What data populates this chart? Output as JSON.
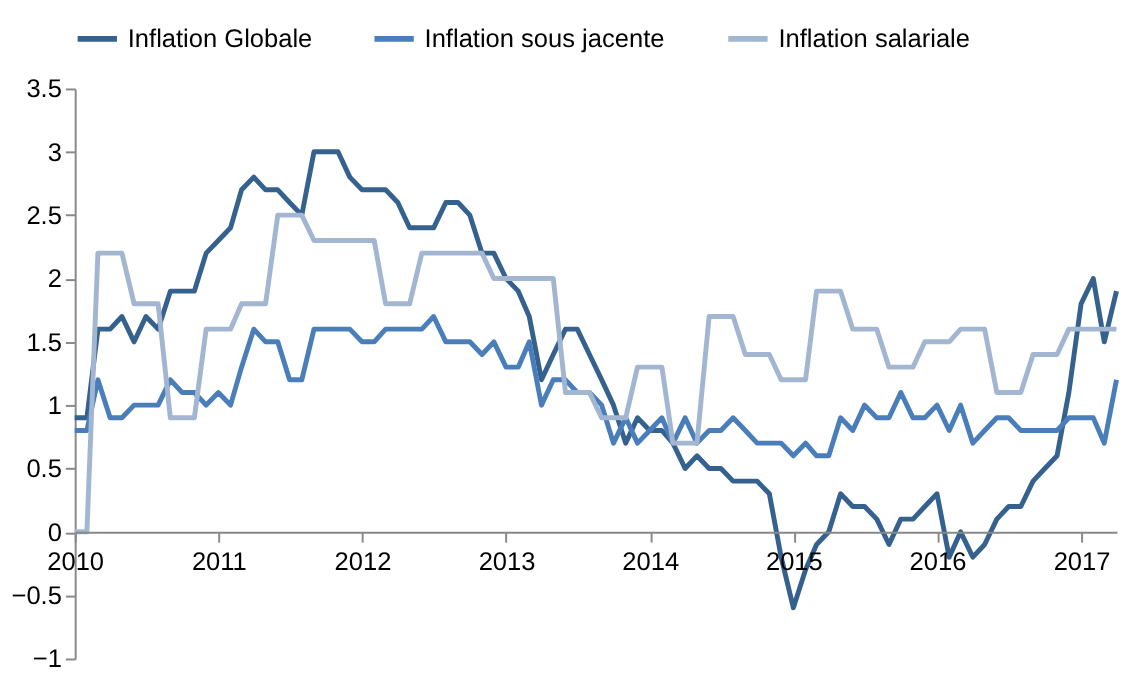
{
  "chart_data": {
    "type": "line",
    "legend": "top",
    "grid": false,
    "marker": "none",
    "line_style": "solid",
    "xlim": [
      "2010-01",
      "2017-04"
    ],
    "xticks": [
      "2010",
      "2011",
      "2012",
      "2013",
      "2014",
      "2015",
      "2016",
      "2017"
    ],
    "ylim": [
      -1,
      3.5
    ],
    "yticks": [
      -1,
      -0.5,
      0,
      0.5,
      1,
      1.5,
      2,
      2.5,
      3,
      3.5
    ],
    "x": [
      "2010-01",
      "2010-02",
      "2010-03",
      "2010-04",
      "2010-05",
      "2010-06",
      "2010-07",
      "2010-08",
      "2010-09",
      "2010-10",
      "2010-11",
      "2010-12",
      "2011-01",
      "2011-02",
      "2011-03",
      "2011-04",
      "2011-05",
      "2011-06",
      "2011-07",
      "2011-08",
      "2011-09",
      "2011-10",
      "2011-11",
      "2011-12",
      "2012-01",
      "2012-02",
      "2012-03",
      "2012-04",
      "2012-05",
      "2012-06",
      "2012-07",
      "2012-08",
      "2012-09",
      "2012-10",
      "2012-11",
      "2012-12",
      "2013-01",
      "2013-02",
      "2013-03",
      "2013-04",
      "2013-05",
      "2013-06",
      "2013-07",
      "2013-08",
      "2013-09",
      "2013-10",
      "2013-11",
      "2013-12",
      "2014-01",
      "2014-02",
      "2014-03",
      "2014-04",
      "2014-05",
      "2014-06",
      "2014-07",
      "2014-08",
      "2014-09",
      "2014-10",
      "2014-11",
      "2014-12",
      "2015-01",
      "2015-02",
      "2015-03",
      "2015-04",
      "2015-05",
      "2015-06",
      "2015-07",
      "2015-08",
      "2015-09",
      "2015-10",
      "2015-11",
      "2015-12",
      "2016-01",
      "2016-02",
      "2016-03",
      "2016-04",
      "2016-05",
      "2016-06",
      "2016-07",
      "2016-08",
      "2016-09",
      "2016-10",
      "2016-11",
      "2016-12",
      "2017-01",
      "2017-02",
      "2017-03",
      "2017-04"
    ],
    "series": [
      {
        "name": "Inflation Globale",
        "color": "#35618f",
        "values": [
          0.9,
          0.9,
          1.6,
          1.6,
          1.7,
          1.5,
          1.7,
          1.6,
          1.9,
          1.9,
          1.9,
          2.2,
          2.3,
          2.4,
          2.7,
          2.8,
          2.7,
          2.7,
          2.6,
          2.5,
          3.0,
          3.0,
          3.0,
          2.8,
          2.7,
          2.7,
          2.7,
          2.6,
          2.4,
          2.4,
          2.4,
          2.6,
          2.6,
          2.5,
          2.2,
          2.2,
          2.0,
          1.9,
          1.7,
          1.2,
          1.4,
          1.6,
          1.6,
          1.4,
          1.2,
          1.0,
          0.7,
          0.9,
          0.8,
          0.8,
          0.7,
          0.5,
          0.6,
          0.5,
          0.5,
          0.4,
          0.4,
          0.4,
          0.3,
          -0.2,
          -0.6,
          -0.3,
          -0.1,
          0.0,
          0.3,
          0.2,
          0.2,
          0.1,
          -0.1,
          0.1,
          0.1,
          0.2,
          0.3,
          -0.2,
          0.0,
          -0.2,
          -0.1,
          0.1,
          0.2,
          0.2,
          0.4,
          0.5,
          0.6,
          1.1,
          1.8,
          2.0,
          1.5,
          1.9
        ]
      },
      {
        "name": "Inflation sous jacente",
        "color": "#4a7ebb",
        "values": [
          0.8,
          0.8,
          1.2,
          0.9,
          0.9,
          1.0,
          1.0,
          1.0,
          1.2,
          1.1,
          1.1,
          1.0,
          1.1,
          1.0,
          1.3,
          1.6,
          1.5,
          1.5,
          1.2,
          1.2,
          1.6,
          1.6,
          1.6,
          1.6,
          1.5,
          1.5,
          1.6,
          1.6,
          1.6,
          1.6,
          1.7,
          1.5,
          1.5,
          1.5,
          1.4,
          1.5,
          1.3,
          1.3,
          1.5,
          1.0,
          1.2,
          1.2,
          1.1,
          1.1,
          1.0,
          0.7,
          0.9,
          0.7,
          0.8,
          0.9,
          0.7,
          0.9,
          0.7,
          0.8,
          0.8,
          0.9,
          0.8,
          0.7,
          0.7,
          0.7,
          0.6,
          0.7,
          0.6,
          0.6,
          0.9,
          0.8,
          1.0,
          0.9,
          0.9,
          1.1,
          0.9,
          0.9,
          1.0,
          0.8,
          1.0,
          0.7,
          0.8,
          0.9,
          0.9,
          0.8,
          0.8,
          0.8,
          0.8,
          0.9,
          0.9,
          0.9,
          0.7,
          1.2
        ]
      },
      {
        "name": "Inflation salariale",
        "color": "#a2b6d2",
        "values": [
          0,
          0,
          2.2,
          2.2,
          2.2,
          1.8,
          1.8,
          1.8,
          0.9,
          0.9,
          0.9,
          1.6,
          1.6,
          1.6,
          1.8,
          1.8,
          1.8,
          2.5,
          2.5,
          2.5,
          2.3,
          2.3,
          2.3,
          2.3,
          2.3,
          2.3,
          1.8,
          1.8,
          1.8,
          2.2,
          2.2,
          2.2,
          2.2,
          2.2,
          2.2,
          2.0,
          2.0,
          2.0,
          2.0,
          2.0,
          2.0,
          1.1,
          1.1,
          1.1,
          0.9,
          0.9,
          0.9,
          1.3,
          1.3,
          1.3,
          0.7,
          0.7,
          0.7,
          1.7,
          1.7,
          1.7,
          1.4,
          1.4,
          1.4,
          1.2,
          1.2,
          1.2,
          1.9,
          1.9,
          1.9,
          1.6,
          1.6,
          1.6,
          1.3,
          1.3,
          1.3,
          1.5,
          1.5,
          1.5,
          1.6,
          1.6,
          1.6,
          1.1,
          1.1,
          1.1,
          1.4,
          1.4,
          1.4,
          1.6,
          1.6,
          1.6,
          1.6,
          1.6
        ]
      }
    ]
  }
}
